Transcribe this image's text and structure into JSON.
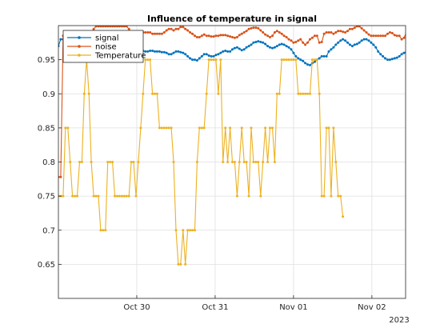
{
  "chart_data": {
    "type": "line",
    "title": "Influence of temperature in signal",
    "xlabel": "",
    "ylabel": "",
    "x_tick_labels": [
      "Oct 30",
      "Oct 31",
      "Nov 01",
      "Nov 02"
    ],
    "x_tick_positions_days": [
      1,
      2,
      3,
      4
    ],
    "x_secondary_label": "2023",
    "x_range_days": [
      0,
      4.43
    ],
    "ylim": [
      0.6,
      1.0
    ],
    "y_ticks": [
      0.65,
      0.7,
      0.75,
      0.8,
      0.85,
      0.9,
      0.95
    ],
    "grid": true,
    "legend_position": "top-left",
    "series": [
      {
        "name": "signal",
        "color": "#0072BD",
        "marker": "dot",
        "x_start": 0,
        "x_step": 0.03,
        "values": [
          0.97,
          0.98,
          0.98,
          0.978,
          0.974,
          0.97,
          0.972,
          0.975,
          0.973,
          0.971,
          0.974,
          0.978,
          0.975,
          0.972,
          0.97,
          0.968,
          0.966,
          0.968,
          0.97,
          0.968,
          0.966,
          0.965,
          0.965,
          0.966,
          0.965,
          0.967,
          0.968,
          0.968,
          0.969,
          0.968,
          0.966,
          0.965,
          0.966,
          0.967,
          0.966,
          0.965,
          0.963,
          0.962,
          0.962,
          0.963,
          0.963,
          0.962,
          0.962,
          0.962,
          0.961,
          0.961,
          0.96,
          0.958,
          0.958,
          0.96,
          0.962,
          0.962,
          0.961,
          0.96,
          0.958,
          0.955,
          0.952,
          0.95,
          0.95,
          0.949,
          0.952,
          0.955,
          0.958,
          0.958,
          0.956,
          0.955,
          0.955,
          0.957,
          0.958,
          0.96,
          0.962,
          0.963,
          0.962,
          0.962,
          0.965,
          0.967,
          0.968,
          0.966,
          0.964,
          0.965,
          0.968,
          0.97,
          0.972,
          0.975,
          0.976,
          0.977,
          0.976,
          0.975,
          0.973,
          0.97,
          0.968,
          0.967,
          0.968,
          0.97,
          0.972,
          0.973,
          0.972,
          0.97,
          0.968,
          0.965,
          0.96,
          0.955,
          0.952,
          0.95,
          0.948,
          0.945,
          0.943,
          0.942,
          0.945,
          0.947,
          0.95,
          0.952,
          0.955,
          0.955,
          0.955,
          0.962,
          0.965,
          0.968,
          0.972,
          0.975,
          0.978,
          0.98,
          0.978,
          0.975,
          0.972,
          0.97,
          0.972,
          0.973,
          0.975,
          0.978,
          0.98,
          0.98,
          0.978,
          0.975,
          0.972,
          0.968,
          0.962,
          0.958,
          0.955,
          0.952,
          0.95,
          0.95,
          0.951,
          0.952,
          0.953,
          0.955,
          0.958,
          0.96,
          0.962,
          0.965,
          0.968,
          0.972
        ]
      },
      {
        "name": "noise",
        "color": "#D95319",
        "marker": "dot",
        "x_start": 0,
        "x_step": 0.03,
        "values": [
          0.778,
          0.778,
          0.985,
          0.99,
          0.99,
          0.99,
          0.99,
          0.99,
          0.99,
          0.99,
          0.99,
          0.99,
          0.985,
          0.985,
          0.99,
          0.995,
          0.999,
          0.999,
          0.999,
          0.999,
          0.999,
          0.999,
          0.999,
          0.999,
          0.999,
          0.999,
          0.999,
          0.999,
          0.999,
          0.999,
          0.995,
          0.99,
          0.99,
          0.99,
          0.99,
          0.99,
          0.99,
          0.99,
          0.99,
          0.99,
          0.988,
          0.988,
          0.988,
          0.988,
          0.988,
          0.99,
          0.993,
          0.995,
          0.995,
          0.993,
          0.995,
          0.995,
          0.998,
          0.998,
          0.995,
          0.993,
          0.99,
          0.988,
          0.985,
          0.983,
          0.983,
          0.985,
          0.987,
          0.985,
          0.985,
          0.984,
          0.984,
          0.985,
          0.985,
          0.986,
          0.986,
          0.986,
          0.985,
          0.984,
          0.983,
          0.982,
          0.983,
          0.986,
          0.988,
          0.99,
          0.992,
          0.995,
          0.996,
          0.997,
          0.997,
          0.996,
          0.993,
          0.99,
          0.987,
          0.985,
          0.983,
          0.985,
          0.99,
          0.992,
          0.99,
          0.988,
          0.985,
          0.983,
          0.98,
          0.978,
          0.975,
          0.976,
          0.978,
          0.98,
          0.975,
          0.972,
          0.975,
          0.98,
          0.982,
          0.985,
          0.985,
          0.975,
          0.976,
          0.988,
          0.99,
          0.99,
          0.99,
          0.988,
          0.99,
          0.992,
          0.992,
          0.991,
          0.99,
          0.992,
          0.995,
          0.995,
          0.997,
          0.999,
          0.999,
          0.996,
          0.993,
          0.99,
          0.987,
          0.985,
          0.985,
          0.985,
          0.985,
          0.985,
          0.985,
          0.985,
          0.988,
          0.99,
          0.989,
          0.986,
          0.985,
          0.985,
          0.98,
          0.982,
          0.99,
          0.995,
          0.999
        ]
      },
      {
        "name": "Temperature",
        "color": "#EDB120",
        "marker": "dot",
        "x_start": 0,
        "x_step": 0.03,
        "values": [
          0.75,
          0.75,
          0.75,
          0.85,
          0.85,
          0.8,
          0.75,
          0.75,
          0.75,
          0.8,
          0.8,
          0.9,
          0.95,
          0.9,
          0.8,
          0.75,
          0.75,
          0.75,
          0.7,
          0.7,
          0.7,
          0.8,
          0.8,
          0.8,
          0.75,
          0.75,
          0.75,
          0.75,
          0.75,
          0.75,
          0.75,
          0.8,
          0.8,
          0.75,
          0.8,
          0.85,
          0.9,
          0.95,
          0.95,
          0.95,
          0.9,
          0.9,
          0.9,
          0.85,
          0.85,
          0.85,
          0.85,
          0.85,
          0.85,
          0.8,
          0.7,
          0.65,
          0.65,
          0.7,
          0.65,
          0.7,
          0.7,
          0.7,
          0.7,
          0.8,
          0.85,
          0.85,
          0.85,
          0.9,
          0.95,
          0.95,
          0.95,
          0.95,
          0.9,
          0.95,
          0.8,
          0.85,
          0.8,
          0.85,
          0.8,
          0.8,
          0.75,
          0.8,
          0.85,
          0.8,
          0.8,
          0.75,
          0.85,
          0.8,
          0.8,
          0.8,
          0.75,
          0.8,
          0.85,
          0.8,
          0.85,
          0.85,
          0.8,
          0.9,
          0.9,
          0.95,
          0.95,
          0.95,
          0.95,
          0.95,
          0.95,
          0.95,
          0.9,
          0.9,
          0.9,
          0.9,
          0.9,
          0.9,
          0.95,
          0.95,
          0.95,
          0.9,
          0.75,
          0.75,
          0.85,
          0.85,
          0.75,
          0.85,
          0.8,
          0.75,
          0.75,
          0.72
        ]
      }
    ]
  }
}
